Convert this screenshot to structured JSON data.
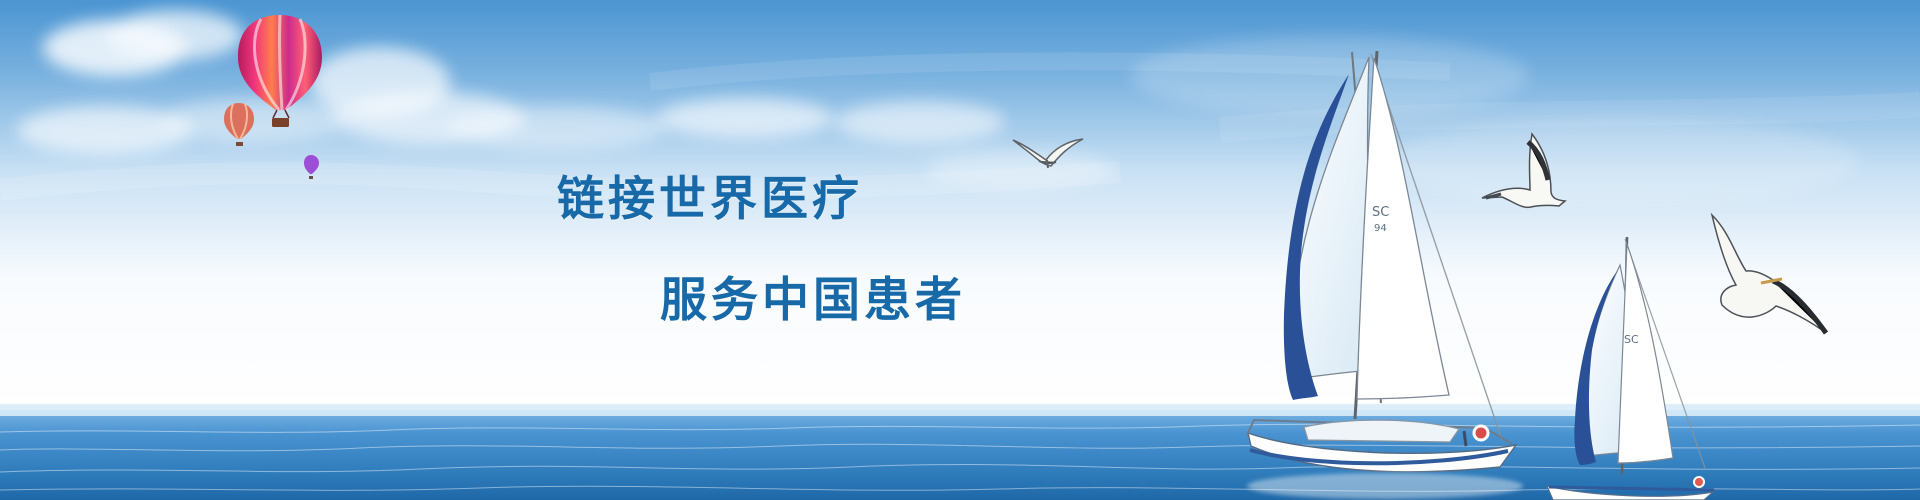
{
  "banner": {
    "headline_1": "链接世界医疗",
    "headline_2": "服务中国患者"
  },
  "colors": {
    "headline": "#1769a8",
    "sky_top": "#4b95d2",
    "sky_bottom": "#ffffff",
    "sea": "#2c79ba",
    "sail": "#ffffff",
    "sail_accent": "#2b4d98"
  },
  "scene": {
    "elements": [
      "hot-air-balloons",
      "clouds",
      "seagulls",
      "sailboats",
      "ocean"
    ]
  }
}
